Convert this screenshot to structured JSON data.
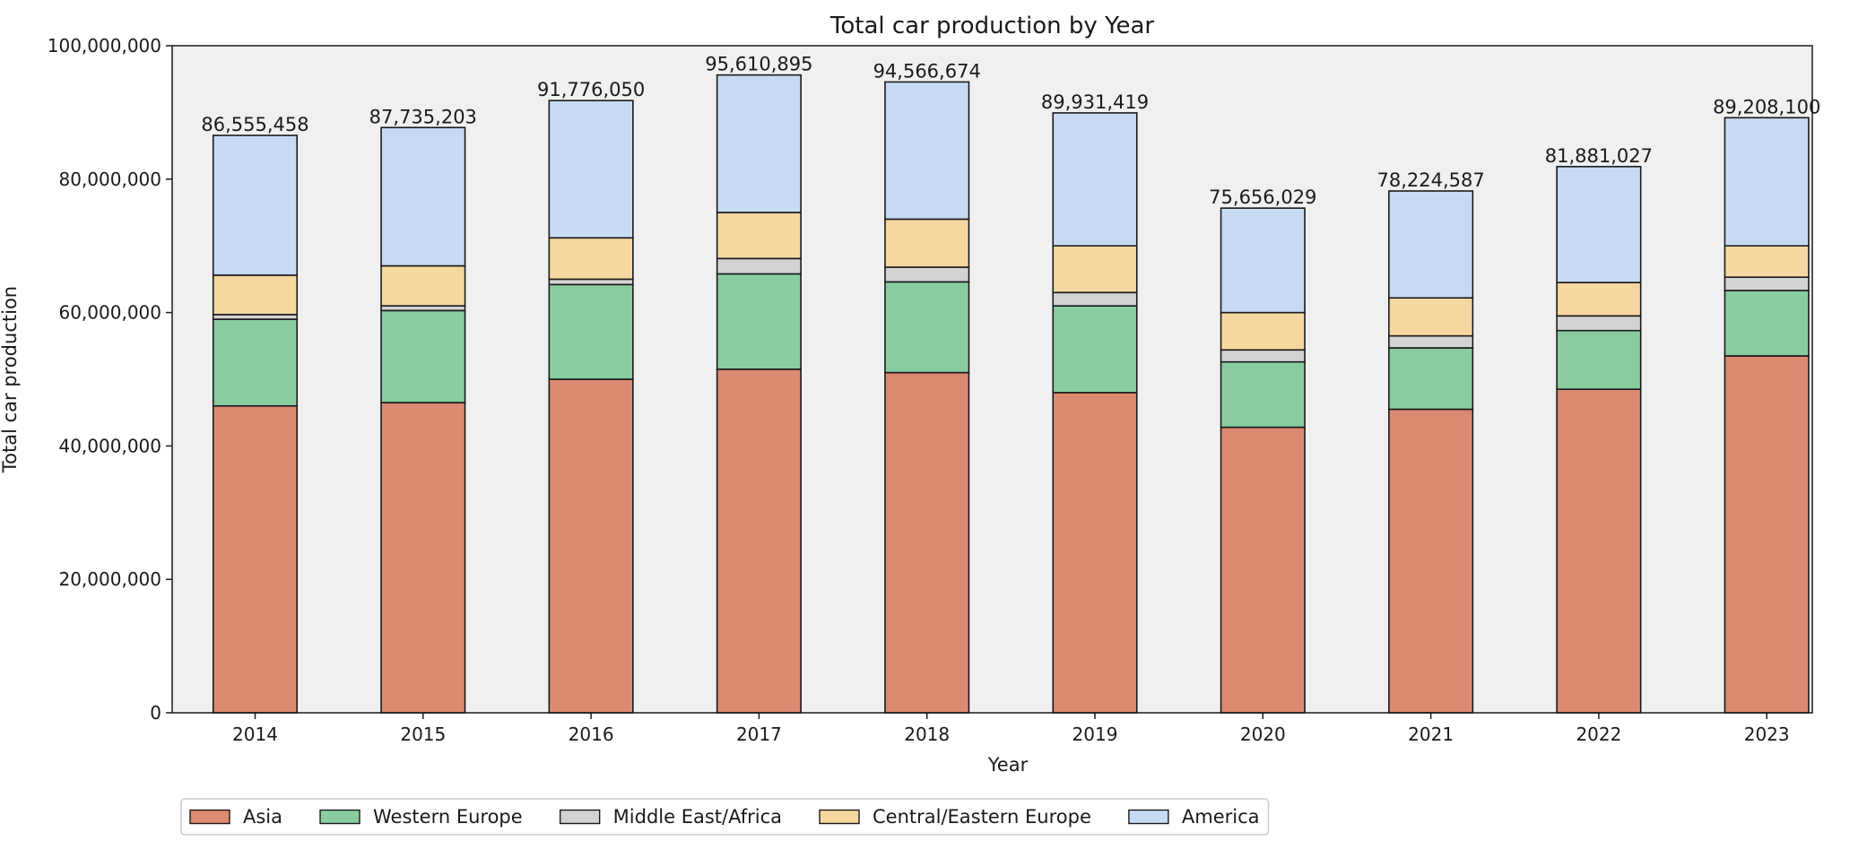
{
  "chart_data": {
    "type": "bar",
    "stacked": true,
    "title": "Total car production by Year",
    "xlabel": "Year",
    "ylabel": "Total car production",
    "ylim": [
      0,
      100000000
    ],
    "yticks": [
      0,
      20000000,
      40000000,
      60000000,
      80000000,
      100000000
    ],
    "ytick_labels": [
      "0",
      "20,000,000",
      "40,000,000",
      "60,000,000",
      "80,000,000",
      "100,000,000"
    ],
    "categories": [
      "2014",
      "2015",
      "2016",
      "2017",
      "2018",
      "2019",
      "2020",
      "2021",
      "2022",
      "2023"
    ],
    "series": [
      {
        "name": "Asia",
        "color": "#dc8a71",
        "values": [
          46000000,
          46500000,
          50000000,
          51500000,
          51000000,
          48000000,
          42800000,
          45500000,
          48500000,
          53500000
        ]
      },
      {
        "name": "Western Europe",
        "color": "#89cca0",
        "values": [
          13000000,
          13800000,
          14200000,
          14300000,
          13600000,
          13000000,
          9800000,
          9200000,
          8800000,
          9800000
        ]
      },
      {
        "name": "Middle East/Africa",
        "color": "#d3d3d3",
        "values": [
          700000,
          700000,
          800000,
          2300000,
          2200000,
          2000000,
          1800000,
          1800000,
          2200000,
          2000000
        ]
      },
      {
        "name": "Central/Eastern Europe",
        "color": "#f6d7a0",
        "values": [
          5900000,
          6000000,
          6200000,
          6900000,
          7200000,
          7000000,
          5600000,
          5700000,
          5000000,
          4700000
        ]
      },
      {
        "name": "America",
        "color": "#c6dbf3",
        "values": [
          20955458,
          20735203,
          20576050,
          20610895,
          20566674,
          19931419,
          15656029,
          16024587,
          17381027,
          19208100
        ]
      }
    ],
    "totals": [
      86555458,
      87735203,
      91776050,
      95610895,
      94566674,
      89931419,
      75656029,
      78224587,
      81881027,
      89208100
    ],
    "total_labels": [
      "86,555,458",
      "87,735,203",
      "91,776,050",
      "95,610,895",
      "94,566,674",
      "89,931,419",
      "75,656,029",
      "78,224,587",
      "81,881,027",
      "89,208,100"
    ],
    "grid": false,
    "legend_position": "bottom-left"
  }
}
